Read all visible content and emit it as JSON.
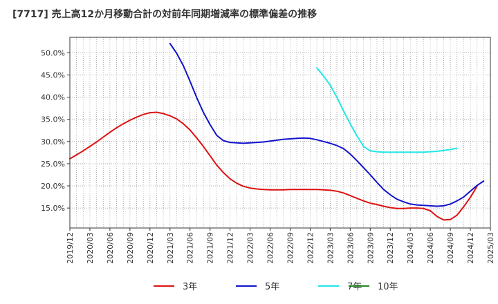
{
  "chart_data": {
    "type": "line",
    "title": "[7717]  売上高12か月移動合計の対前年同期増減率の標準偏差の推移",
    "xlabel": "",
    "ylabel": "",
    "ylim": [
      10.5,
      53.5
    ],
    "y_ticks": [
      15,
      20,
      25,
      30,
      35,
      40,
      45,
      50
    ],
    "y_tick_labels": [
      "15.0%",
      "20.0%",
      "25.0%",
      "30.0%",
      "35.0%",
      "40.0%",
      "45.0%",
      "50.0%"
    ],
    "x_tick_labels": [
      "2019/12",
      "2020/03",
      "2020/06",
      "2020/09",
      "2020/12",
      "2021/03",
      "2021/06",
      "2021/09",
      "2021/12",
      "2022/03",
      "2022/06",
      "2022/09",
      "2022/12",
      "2023/03",
      "2023/06",
      "2023/09",
      "2023/12",
      "2024/03",
      "2024/06",
      "2024/09",
      "2024/12",
      "2025/03"
    ],
    "x_start": "2019/12",
    "grid": true,
    "legend_position": "bottom",
    "series": [
      {
        "name": "3年",
        "color": "#dd1111",
        "start": "2019/12",
        "values": [
          26.1,
          27.0,
          27.9,
          28.9,
          29.9,
          31.0,
          32.1,
          33.1,
          34.0,
          34.8,
          35.5,
          36.1,
          36.5,
          36.6,
          36.3,
          35.8,
          35.1,
          34.0,
          32.6,
          30.8,
          28.9,
          26.8,
          24.7,
          23.0,
          21.6,
          20.6,
          19.9,
          19.5,
          19.3,
          19.2,
          19.1,
          19.1,
          19.1,
          19.2,
          19.2,
          19.2,
          19.2,
          19.2,
          19.1,
          19.0,
          18.8,
          18.4,
          17.8,
          17.2,
          16.6,
          16.1,
          15.8,
          15.4,
          15.1,
          14.9,
          14.9,
          15.0,
          15.0,
          14.9,
          14.4,
          13.1,
          12.3,
          12.4,
          13.4,
          15.3,
          17.4,
          19.9
        ]
      },
      {
        "name": "5年",
        "color": "#1111cc",
        "start": "2021/03",
        "values": [
          52.1,
          49.9,
          47.1,
          43.6,
          39.9,
          36.6,
          33.8,
          31.4,
          30.2,
          29.8,
          29.7,
          29.6,
          29.7,
          29.8,
          29.9,
          30.1,
          30.3,
          30.5,
          30.6,
          30.7,
          30.8,
          30.7,
          30.4,
          30.0,
          29.6,
          29.1,
          28.4,
          27.2,
          25.7,
          24.1,
          22.5,
          20.8,
          19.2,
          18.0,
          17.0,
          16.4,
          15.9,
          15.7,
          15.6,
          15.5,
          15.4,
          15.5,
          15.9,
          16.6,
          17.5,
          18.8,
          20.1,
          21.1
        ]
      },
      {
        "name": "7年",
        "color": "#22e6e6",
        "start": "2023/01",
        "values": [
          46.6,
          44.8,
          42.7,
          40.0,
          36.9,
          34.0,
          31.3,
          28.9,
          27.9,
          27.7,
          27.6,
          27.6,
          27.6,
          27.6,
          27.6,
          27.6,
          27.6,
          27.7,
          27.8,
          28.0,
          28.2,
          28.5
        ]
      },
      {
        "name": "10年",
        "color": "#228822",
        "start": "2024/12",
        "values": []
      }
    ]
  }
}
